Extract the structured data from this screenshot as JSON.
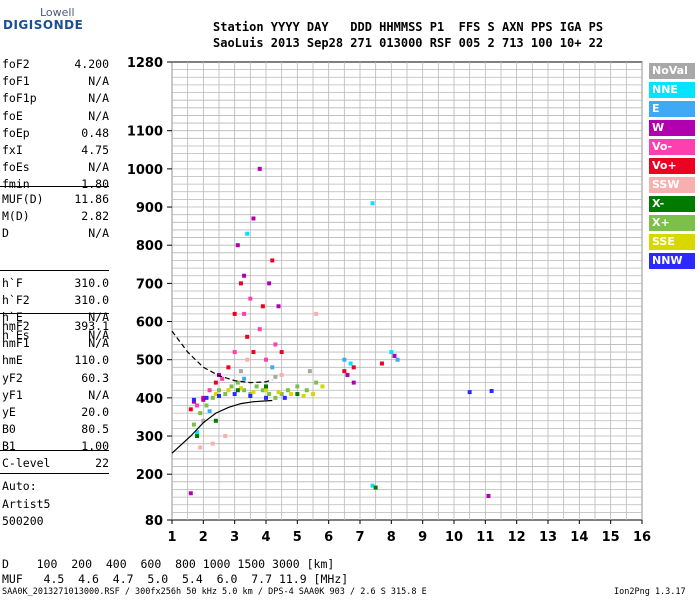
{
  "logo": {
    "line1": "Lowell",
    "line2": "DIGISONDE"
  },
  "header": {
    "line1": "Station YYYY DAY   DDD HHMMSS P1  FFS S AXN PPS IGA PS",
    "line2": "SaoLuis 2013 Sep28 271 013000 RSF 005 2 713 100 10+ 22"
  },
  "params_group1": [
    {
      "key": "foF2",
      "val": "4.200"
    },
    {
      "key": "foF1",
      "val": "N/A"
    },
    {
      "key": "foF1p",
      "val": "N/A"
    },
    {
      "key": "foE",
      "val": "N/A"
    },
    {
      "key": "foEp",
      "val": "0.48"
    },
    {
      "key": "fxI",
      "val": "4.75"
    },
    {
      "key": "foEs",
      "val": "N/A"
    },
    {
      "key": "fmin",
      "val": "1.80"
    }
  ],
  "params_group2": [
    {
      "key": "MUF(D)",
      "val": "11.86"
    },
    {
      "key": "M(D)",
      "val": "2.82"
    },
    {
      "key": "D",
      "val": "N/A"
    }
  ],
  "params_group3": [
    {
      "key": "h`F",
      "val": "310.0"
    },
    {
      "key": "h`F2",
      "val": "310.0"
    },
    {
      "key": "h`E",
      "val": "N/A"
    },
    {
      "key": "h`Es",
      "val": "N/A"
    }
  ],
  "params_group4": [
    {
      "key": "hmF2",
      "val": "393.1"
    },
    {
      "key": "hmF1",
      "val": "N/A"
    },
    {
      "key": "hmE",
      "val": "110.0"
    },
    {
      "key": "yF2",
      "val": "60.3"
    },
    {
      "key": "yF1",
      "val": "N/A"
    },
    {
      "key": "yE",
      "val": "20.0"
    },
    {
      "key": "B0",
      "val": "80.5"
    },
    {
      "key": "B1",
      "val": "1.00"
    }
  ],
  "params_group5": [
    {
      "key": "C-level",
      "val": "22"
    }
  ],
  "autoscale": {
    "label": "Auto:",
    "name": "Artist5",
    "version": "500200"
  },
  "legend": [
    {
      "label": "NoVal",
      "color": "#a8a8a8"
    },
    {
      "label": "NNE",
      "color": "#00e5ff"
    },
    {
      "label": "E",
      "color": "#3fa9f5"
    },
    {
      "label": "W",
      "color": "#b000b0"
    },
    {
      "label": "Vo-",
      "color": "#ff3fb0"
    },
    {
      "label": "Vo+",
      "color": "#ee0022"
    },
    {
      "label": "SSW",
      "color": "#f7b0b0"
    },
    {
      "label": "X-",
      "color": "#007a00"
    },
    {
      "label": "X+",
      "color": "#7cc04a"
    },
    {
      "label": "SSE",
      "color": "#d8d800"
    },
    {
      "label": "NNW",
      "color": "#2a2aff"
    }
  ],
  "footer": {
    "d_row": "D    100  200  400  600  800 1000 1500 3000 [km]",
    "muf_row": "MUF   4.5  4.6  4.7  5.0  5.4  6.0  7.7 11.9 [MHz]",
    "source": "SAA0K_2013271013000.RSF / 300fx256h 50 kHz 5.0 km / DPS-4 SAA0K 903 / 2.6 S 315.8 E",
    "version": "Ion2Png 1.3.17"
  },
  "chart_data": {
    "type": "scatter",
    "title": "",
    "xlabel": "",
    "ylabel": "",
    "xlim": [
      1,
      16
    ],
    "ylim": [
      80,
      1280
    ],
    "x_ticks": [
      1,
      2,
      3,
      4,
      5,
      6,
      7,
      8,
      9,
      10,
      11,
      12,
      13,
      14,
      15,
      16
    ],
    "y_ticks": [
      80,
      200,
      300,
      400,
      500,
      600,
      700,
      800,
      900,
      1000,
      1100,
      1280
    ],
    "grid": true,
    "legend_position": "right",
    "series": [
      {
        "name": "X+",
        "values": [
          [
            1.7,
            330
          ],
          [
            1.9,
            360
          ],
          [
            2.1,
            380
          ],
          [
            2.3,
            400
          ],
          [
            2.5,
            420
          ],
          [
            2.7,
            410
          ],
          [
            2.9,
            430
          ],
          [
            3.1,
            440
          ],
          [
            3.3,
            420
          ],
          [
            3.5,
            410
          ],
          [
            3.7,
            430
          ],
          [
            3.9,
            420
          ],
          [
            4.1,
            410
          ],
          [
            4.3,
            400
          ],
          [
            4.5,
            410
          ],
          [
            4.7,
            420
          ],
          [
            5.0,
            430
          ],
          [
            5.3,
            420
          ],
          [
            5.6,
            440
          ]
        ]
      },
      {
        "name": "SSE",
        "values": [
          [
            2.4,
            410
          ],
          [
            2.8,
            420
          ],
          [
            3.2,
            425
          ],
          [
            3.6,
            415
          ],
          [
            4.0,
            420
          ],
          [
            4.4,
            415
          ],
          [
            4.8,
            410
          ],
          [
            5.2,
            405
          ],
          [
            5.5,
            410
          ],
          [
            5.8,
            430
          ]
        ]
      },
      {
        "name": "Vo+",
        "values": [
          [
            1.6,
            370
          ],
          [
            2.0,
            400
          ],
          [
            2.4,
            440
          ],
          [
            2.8,
            480
          ],
          [
            3.0,
            620
          ],
          [
            3.2,
            700
          ],
          [
            3.4,
            560
          ],
          [
            3.6,
            520
          ],
          [
            3.9,
            640
          ],
          [
            4.2,
            760
          ],
          [
            4.5,
            520
          ],
          [
            6.5,
            470
          ],
          [
            6.8,
            480
          ],
          [
            7.7,
            490
          ],
          [
            8.1,
            510
          ]
        ]
      },
      {
        "name": "Vo-",
        "values": [
          [
            1.8,
            380
          ],
          [
            2.2,
            420
          ],
          [
            2.6,
            450
          ],
          [
            3.0,
            520
          ],
          [
            3.3,
            620
          ],
          [
            3.5,
            660
          ],
          [
            3.8,
            580
          ],
          [
            4.0,
            500
          ],
          [
            4.3,
            540
          ]
        ]
      },
      {
        "name": "W",
        "values": [
          [
            1.6,
            150
          ],
          [
            1.7,
            390
          ],
          [
            2.0,
            395
          ],
          [
            2.5,
            460
          ],
          [
            3.1,
            800
          ],
          [
            3.3,
            720
          ],
          [
            3.6,
            870
          ],
          [
            3.8,
            1000
          ],
          [
            4.1,
            700
          ],
          [
            4.4,
            640
          ],
          [
            6.6,
            460
          ],
          [
            6.8,
            440
          ],
          [
            8.1,
            510
          ],
          [
            11.1,
            143
          ]
        ]
      },
      {
        "name": "NNW",
        "values": [
          [
            1.7,
            395
          ],
          [
            2.1,
            400
          ],
          [
            2.5,
            405
          ],
          [
            3.0,
            410
          ],
          [
            3.5,
            405
          ],
          [
            4.0,
            400
          ],
          [
            4.6,
            400
          ],
          [
            10.5,
            415
          ],
          [
            11.2,
            418
          ]
        ]
      },
      {
        "name": "NNE",
        "values": [
          [
            1.8,
            310
          ],
          [
            3.4,
            830
          ],
          [
            7.4,
            910
          ],
          [
            7.4,
            170
          ],
          [
            6.7,
            490
          ],
          [
            8.0,
            520
          ]
        ]
      },
      {
        "name": "E",
        "values": [
          [
            2.2,
            365
          ],
          [
            3.3,
            450
          ],
          [
            4.2,
            480
          ],
          [
            6.5,
            500
          ],
          [
            8.2,
            500
          ]
        ]
      },
      {
        "name": "SSW",
        "values": [
          [
            1.9,
            270
          ],
          [
            2.3,
            280
          ],
          [
            2.7,
            300
          ],
          [
            3.4,
            500
          ],
          [
            4.5,
            460
          ],
          [
            5.6,
            620
          ]
        ]
      },
      {
        "name": "X-",
        "values": [
          [
            1.8,
            300
          ],
          [
            2.4,
            340
          ],
          [
            3.1,
            420
          ],
          [
            4.0,
            430
          ],
          [
            5.0,
            410
          ],
          [
            7.5,
            165
          ]
        ]
      },
      {
        "name": "NoVal",
        "values": [
          [
            2.0,
            340
          ],
          [
            3.2,
            470
          ],
          [
            4.3,
            455
          ],
          [
            5.4,
            470
          ]
        ]
      }
    ],
    "curves": [
      {
        "name": "profile-solid",
        "values": [
          [
            1.0,
            255
          ],
          [
            1.6,
            300
          ],
          [
            2.0,
            335
          ],
          [
            2.4,
            360
          ],
          [
            2.8,
            375
          ],
          [
            3.2,
            385
          ],
          [
            3.6,
            390
          ],
          [
            4.0,
            392
          ],
          [
            4.2,
            393
          ]
        ]
      },
      {
        "name": "profile-dashed",
        "values": [
          [
            1.0,
            575
          ],
          [
            1.5,
            520
          ],
          [
            2.0,
            480
          ],
          [
            2.5,
            458
          ],
          [
            3.0,
            445
          ],
          [
            3.5,
            440
          ],
          [
            4.0,
            442
          ],
          [
            4.2,
            447
          ]
        ]
      }
    ]
  }
}
